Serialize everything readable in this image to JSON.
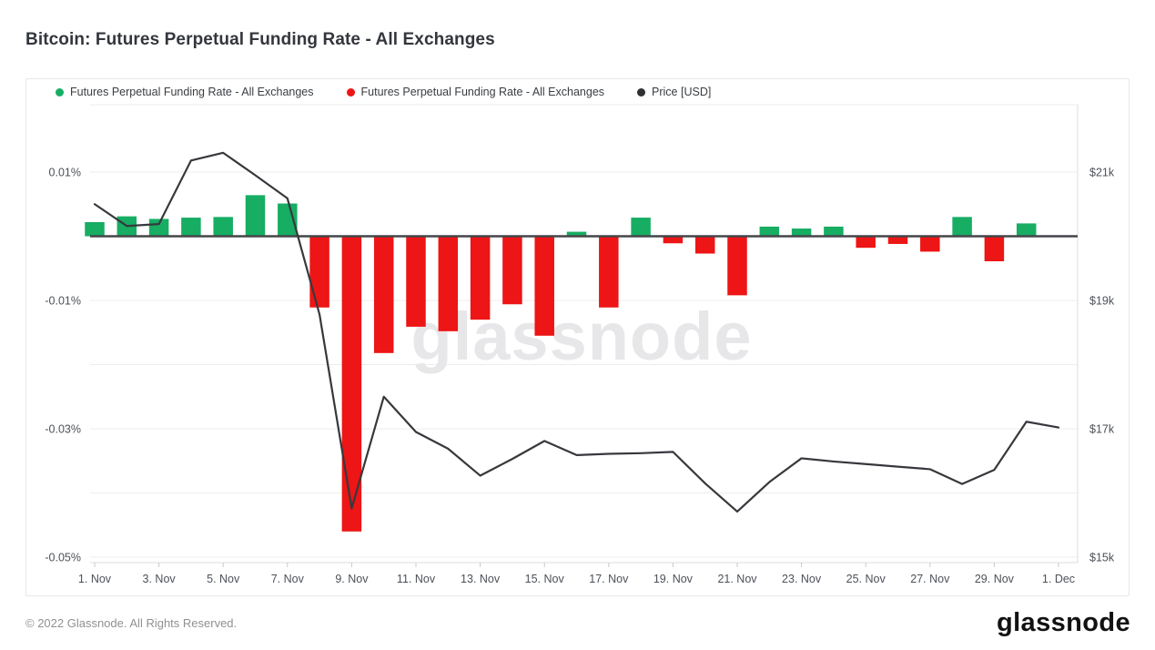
{
  "title": "Bitcoin: Futures Perpetual Funding Rate - All Exchanges",
  "legend": {
    "items": [
      {
        "label": "Futures Perpetual Funding Rate - All Exchanges",
        "color": "#17ad63"
      },
      {
        "label": "Futures Perpetual Funding Rate - All Exchanges",
        "color": "#ed1515"
      },
      {
        "label": "Price [USD]",
        "color": "#2f3033"
      }
    ]
  },
  "watermark": "glassnode",
  "footer": {
    "copyright": "© 2022 Glassnode. All Rights Reserved.",
    "logo_text": "glassnode"
  },
  "colors": {
    "bar_positive": "#17ad63",
    "bar_negative": "#ed1515",
    "price_line": "#37383c",
    "zero_line": "#45464a",
    "gridline": "#ededef",
    "plot_border": "#dddde1",
    "axis_text": "#4c5158",
    "tick_mark": "#c9c9ce",
    "watermark_fill": "#e7e7e9"
  },
  "chart_data": {
    "type": "bar",
    "title": "Bitcoin: Futures Perpetual Funding Rate - All Exchanges",
    "x": [
      "Nov 1",
      "Nov 2",
      "Nov 3",
      "Nov 4",
      "Nov 5",
      "Nov 6",
      "Nov 7",
      "Nov 8",
      "Nov 9",
      "Nov 10",
      "Nov 11",
      "Nov 12",
      "Nov 13",
      "Nov 14",
      "Nov 15",
      "Nov 16",
      "Nov 17",
      "Nov 18",
      "Nov 19",
      "Nov 20",
      "Nov 21",
      "Nov 22",
      "Nov 23",
      "Nov 24",
      "Nov 25",
      "Nov 26",
      "Nov 27",
      "Nov 28",
      "Nov 29",
      "Nov 30",
      "Dec 1"
    ],
    "series": [
      {
        "name": "Futures Perpetual Funding Rate - All Exchanges",
        "type": "bar",
        "axis": "left",
        "unit": "%",
        "values": [
          0.0022,
          0.0031,
          0.0027,
          0.0029,
          0.003,
          0.0064,
          0.0051,
          -0.0111,
          -0.046,
          -0.0182,
          -0.0141,
          -0.0148,
          -0.013,
          -0.0106,
          -0.0155,
          0.0007,
          -0.0111,
          0.0029,
          -0.0011,
          -0.0027,
          -0.0092,
          0.0015,
          0.0012,
          0.0015,
          -0.0018,
          -0.0012,
          -0.0024,
          0.003,
          -0.0039,
          0.002,
          0
        ]
      },
      {
        "name": "Price [USD]",
        "type": "line",
        "axis": "right",
        "unit": "k USD",
        "values": [
          20.5,
          20.16,
          20.19,
          21.18,
          21.3,
          20.95,
          20.59,
          18.78,
          15.76,
          17.5,
          16.95,
          16.69,
          16.27,
          16.53,
          16.81,
          16.59,
          16.61,
          16.62,
          16.64,
          16.15,
          15.71,
          16.17,
          16.54,
          16.49,
          16.45,
          16.41,
          16.37,
          16.14,
          16.36,
          17.11,
          17.02
        ]
      }
    ],
    "x_ticks": [
      {
        "index": 0,
        "label": "1. Nov"
      },
      {
        "index": 2,
        "label": "3. Nov"
      },
      {
        "index": 4,
        "label": "5. Nov"
      },
      {
        "index": 6,
        "label": "7. Nov"
      },
      {
        "index": 8,
        "label": "9. Nov"
      },
      {
        "index": 10,
        "label": "11. Nov"
      },
      {
        "index": 12,
        "label": "13. Nov"
      },
      {
        "index": 14,
        "label": "15. Nov"
      },
      {
        "index": 16,
        "label": "17. Nov"
      },
      {
        "index": 18,
        "label": "19. Nov"
      },
      {
        "index": 20,
        "label": "21. Nov"
      },
      {
        "index": 22,
        "label": "23. Nov"
      },
      {
        "index": 24,
        "label": "25. Nov"
      },
      {
        "index": 26,
        "label": "27. Nov"
      },
      {
        "index": 28,
        "label": "29. Nov"
      },
      {
        "index": 30,
        "label": "1. Dec"
      }
    ],
    "left_axis": {
      "tick_labels": [
        "0.01%",
        "-0.01%",
        "-0.03%",
        "-0.05%"
      ],
      "tick_values": [
        0.01,
        -0.01,
        -0.03,
        -0.05
      ],
      "gridline_values": [
        0.01,
        -0.01,
        -0.02,
        -0.03,
        -0.04,
        -0.05
      ],
      "range": [
        -0.0509,
        0.0205
      ]
    },
    "right_axis": {
      "tick_labels": [
        "$21k",
        "$19k",
        "$17k",
        "$15k"
      ],
      "tick_values": [
        21,
        19,
        17,
        15
      ],
      "range": [
        14.91,
        22.05
      ]
    },
    "legend_position": "top-left",
    "grid": true
  }
}
